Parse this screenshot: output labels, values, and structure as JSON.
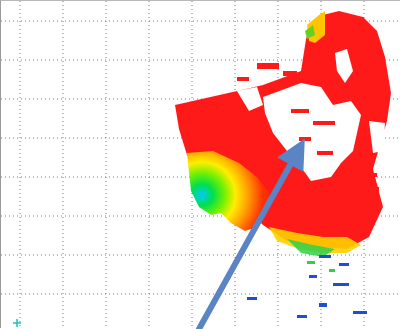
{
  "view": {
    "grid": true,
    "grid_style": "dotted",
    "grid_color": "#7a7a7a",
    "background": "#ffffff"
  },
  "colors": {
    "primary_fill": "#ff1a1a",
    "secondary_fill": "#ff3300",
    "gradient": [
      "#00c8ff",
      "#00e04a",
      "#7cf000",
      "#ffee00",
      "#ffa000",
      "#ff3000"
    ],
    "sparse_blue": "#1a4fd6",
    "arrow": "#5b84c4",
    "marker": "#18c0c0"
  },
  "arrow": {
    "present": true
  },
  "corner_marker": {
    "present": true
  }
}
